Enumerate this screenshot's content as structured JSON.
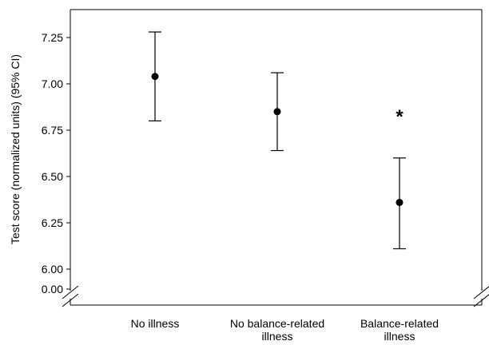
{
  "chart_data": {
    "type": "scatter",
    "title": "",
    "xlabel": "",
    "ylabel": "Test score (normalized units) (95% CI)",
    "ylim": [
      6.0,
      7.3
    ],
    "y_ticks": [
      "0.00",
      "6.00",
      "6.25",
      "6.50",
      "6.75",
      "7.00",
      "7.25"
    ],
    "y_axis_break": true,
    "grid": false,
    "categories": [
      [
        "No illness"
      ],
      [
        "No balance-related",
        "illness"
      ],
      [
        "Balance-related",
        "illness"
      ]
    ],
    "series": [
      {
        "values": [
          7.04,
          6.85,
          6.36
        ],
        "ci_lower": [
          6.8,
          6.64,
          6.11
        ],
        "ci_upper": [
          7.28,
          7.06,
          6.6
        ]
      }
    ],
    "annotations": [
      {
        "category_index": 2,
        "text": "*",
        "y": 6.85
      }
    ],
    "colors": {
      "marker": "#000000",
      "axis": "#000000",
      "background": "#ffffff"
    }
  }
}
